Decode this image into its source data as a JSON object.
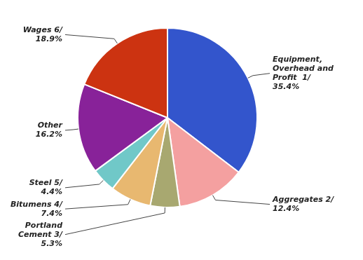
{
  "chart_data": {
    "type": "pie",
    "categories": [
      "Equipment,\nOverhead and\nProfit  1/",
      "Aggregates 2/",
      "Portland\nCement 3/",
      "Bitumens 4/",
      "Steel 5/",
      "Other",
      "Wages 6/"
    ],
    "values": [
      35.4,
      12.4,
      5.3,
      7.4,
      4.4,
      16.2,
      18.9
    ],
    "value_labels": [
      "35.4%",
      "12.4%",
      "5.3%",
      "7.4%",
      "4.4%",
      "16.2%",
      "18.9%"
    ],
    "colors": [
      "#3355CC",
      "#F4A0A0",
      "#A8A870",
      "#E8B870",
      "#70C8C8",
      "#882299",
      "#CC3311"
    ],
    "data_labels": true
  }
}
